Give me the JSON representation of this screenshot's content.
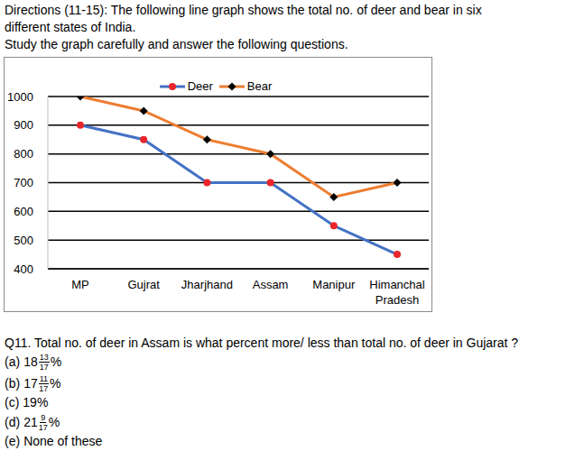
{
  "directions": [
    "Directions (11-15): The following line graph shows the total no. of deer and bear in six",
    "different states of India.",
    "Study the graph carefully and answer the following questions."
  ],
  "chart_data": {
    "type": "line",
    "categories": [
      "MP",
      "Gujrat",
      "Jharjhand",
      "Assam",
      "Manipur",
      "Himanchal Pradesh"
    ],
    "series": [
      {
        "name": "Deer",
        "color": "#4472c4",
        "marker": "circle",
        "values": [
          900,
          850,
          700,
          700,
          550,
          450
        ]
      },
      {
        "name": "Bear",
        "color": "#ed7d31",
        "marker": "diamond",
        "values": [
          1000,
          950,
          850,
          800,
          650,
          700
        ]
      }
    ],
    "ylim": [
      400,
      1000
    ],
    "yticks": [
      400,
      500,
      600,
      700,
      800,
      900,
      1000
    ],
    "grid": true,
    "legend": "top"
  },
  "question": {
    "text": "Q11. Total no. of deer in Assam is what percent more/ less than total no. of deer in Gujarat ?",
    "options": [
      {
        "label": "(a)",
        "whole": "18",
        "numerator": "13",
        "denominator": "17",
        "suffix": "%"
      },
      {
        "label": "(b)",
        "whole": "17",
        "numerator": "11",
        "denominator": "17",
        "suffix": "%"
      },
      {
        "label": "(c)",
        "text": "19%"
      },
      {
        "label": "(d)",
        "whole": "21",
        "numerator": "9",
        "denominator": "17",
        "suffix": "%"
      },
      {
        "label": "(e)",
        "text": "None of these"
      }
    ]
  }
}
